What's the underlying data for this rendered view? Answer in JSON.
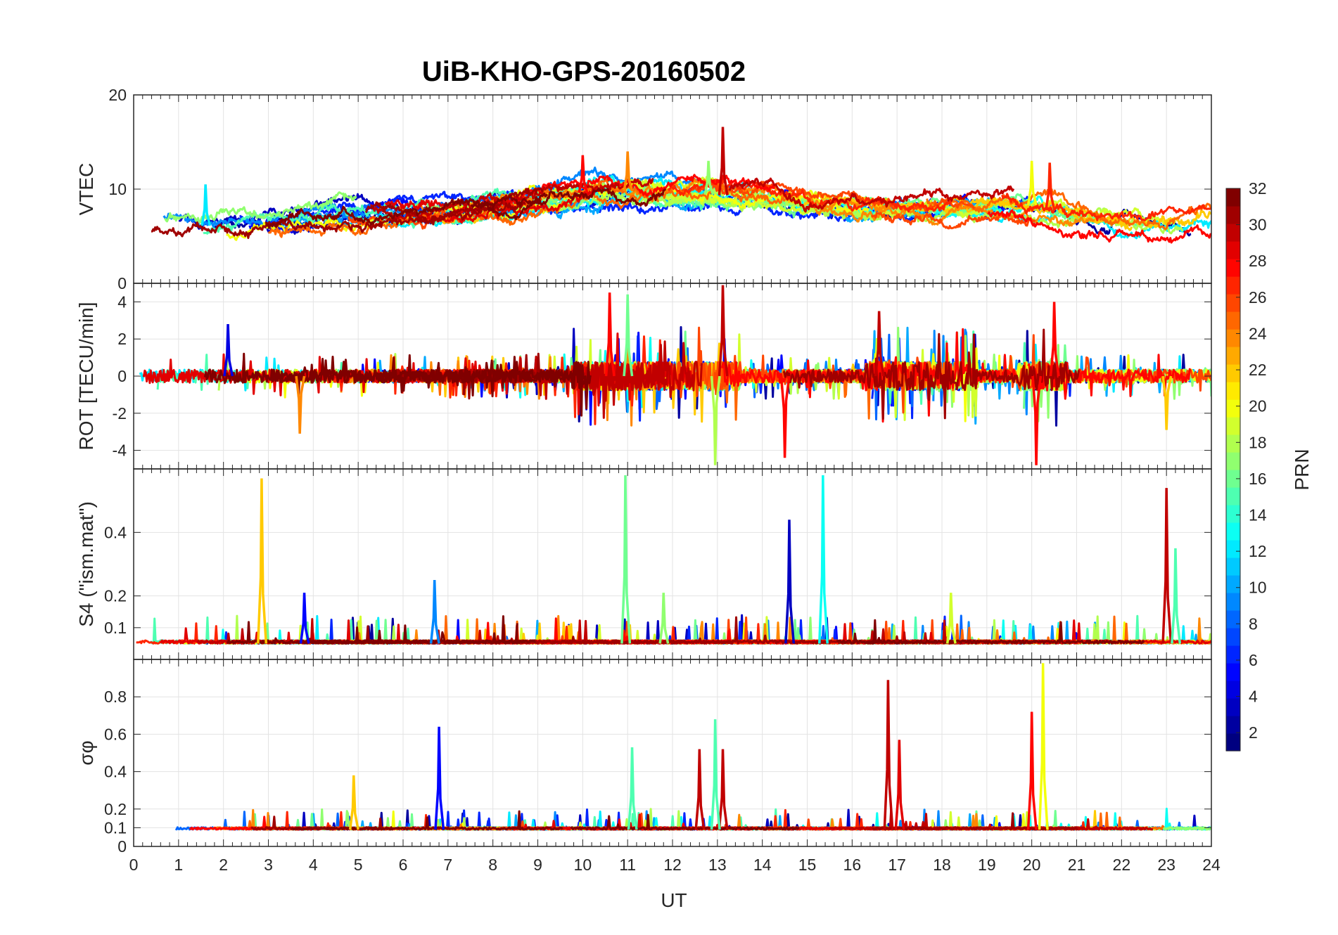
{
  "chart_data": {
    "type": "line",
    "title": "UiB-KHO-GPS-20160502",
    "xlabel": "UT",
    "xlim": [
      0,
      24
    ],
    "xticks": [
      0,
      1,
      2,
      3,
      4,
      5,
      6,
      7,
      8,
      9,
      10,
      11,
      12,
      13,
      14,
      15,
      16,
      17,
      18,
      19,
      20,
      21,
      22,
      23,
      24
    ],
    "grid": true,
    "colorbar": {
      "label": "PRN",
      "colormap": "jet",
      "range": [
        1,
        32
      ],
      "ticks": [
        2,
        4,
        6,
        8,
        10,
        12,
        14,
        16,
        18,
        20,
        22,
        24,
        26,
        28,
        30,
        32
      ]
    },
    "series_note_text": "",
    "panels": [
      {
        "id": "vtec",
        "ylabel": "VTEC",
        "ylim": [
          0,
          20
        ],
        "yticks": [
          0,
          10,
          20
        ],
        "base": [
          [
            0,
            6.3
          ],
          [
            1,
            6.0
          ],
          [
            2,
            6.2
          ],
          [
            3,
            6.5
          ],
          [
            4,
            7.0
          ],
          [
            5,
            7.3
          ],
          [
            6,
            7.4
          ],
          [
            7,
            7.6
          ],
          [
            8,
            8.2
          ],
          [
            9,
            9.0
          ],
          [
            10,
            9.6
          ],
          [
            11,
            9.8
          ],
          [
            12,
            9.5
          ],
          [
            13,
            9.4
          ],
          [
            14,
            9.0
          ],
          [
            15,
            8.5
          ],
          [
            16,
            8.2
          ],
          [
            17,
            8.0
          ],
          [
            18,
            8.0
          ],
          [
            19,
            8.2
          ],
          [
            20,
            8.3
          ],
          [
            21,
            7.2
          ],
          [
            22,
            6.5
          ],
          [
            23,
            5.8
          ],
          [
            24,
            6.2
          ]
        ],
        "noise": 1.3,
        "spikes": [
          [
            13.12,
            16.6,
            30
          ],
          [
            11.0,
            14.0,
            24
          ],
          [
            10.0,
            13.6,
            28
          ],
          [
            20.0,
            13.0,
            20
          ],
          [
            20.4,
            12.8,
            27
          ],
          [
            12.8,
            13.0,
            17
          ],
          [
            1.6,
            10.5,
            12
          ]
        ]
      },
      {
        "id": "rot",
        "ylabel": "ROT [TECU/min]",
        "ylim": [
          -5,
          5
        ],
        "yticks": [
          -4,
          -2,
          0,
          2,
          4
        ],
        "base": [
          [
            0,
            0
          ],
          [
            24,
            0
          ]
        ],
        "noise": 0.7,
        "spikes": [
          [
            13.12,
            4.9,
            30
          ],
          [
            12.95,
            -4.8,
            18
          ],
          [
            14.5,
            -4.4,
            28
          ],
          [
            20.1,
            -4.8,
            28
          ],
          [
            10.6,
            4.5,
            28
          ],
          [
            11.0,
            4.4,
            16
          ],
          [
            20.5,
            4.0,
            28
          ],
          [
            16.6,
            3.5,
            30
          ],
          [
            2.1,
            2.8,
            4
          ],
          [
            3.7,
            -3.1,
            24
          ],
          [
            23.0,
            -2.9,
            22
          ]
        ]
      },
      {
        "id": "s4",
        "ylabel": "S4 (\"ism.mat\")",
        "ylim": [
          0,
          0.6
        ],
        "yticks": [
          0.1,
          0.2,
          0.4
        ],
        "base": [
          [
            0,
            0.05
          ],
          [
            24,
            0.05
          ]
        ],
        "noise": 0.02,
        "spikes": [
          [
            2.85,
            0.57,
            22
          ],
          [
            10.95,
            0.58,
            16
          ],
          [
            15.35,
            0.58,
            13
          ],
          [
            14.6,
            0.44,
            3
          ],
          [
            23.0,
            0.54,
            30
          ],
          [
            6.7,
            0.25,
            9
          ],
          [
            3.8,
            0.21,
            5
          ],
          [
            18.2,
            0.21,
            19
          ],
          [
            23.2,
            0.35,
            15
          ],
          [
            11.8,
            0.21,
            17
          ]
        ]
      },
      {
        "id": "sigma-phi",
        "ylabel": "σφ",
        "ylim": [
          0,
          1
        ],
        "yticks": [
          0,
          0.1,
          0.2,
          0.4,
          0.6,
          0.8
        ],
        "base": [
          [
            0,
            0.09
          ],
          [
            24,
            0.09
          ]
        ],
        "noise": 0.025,
        "spikes": [
          [
            16.8,
            0.89,
            30
          ],
          [
            20.25,
            0.98,
            20
          ],
          [
            20.0,
            0.72,
            28
          ],
          [
            17.05,
            0.57,
            29
          ],
          [
            6.8,
            0.64,
            5
          ],
          [
            12.6,
            0.52,
            30
          ],
          [
            13.12,
            0.52,
            30
          ],
          [
            11.1,
            0.53,
            15
          ],
          [
            12.95,
            0.68,
            15
          ],
          [
            4.9,
            0.38,
            22
          ]
        ]
      }
    ],
    "colors": {
      "axis": "#262626",
      "grid": "#e3e3e3"
    }
  }
}
